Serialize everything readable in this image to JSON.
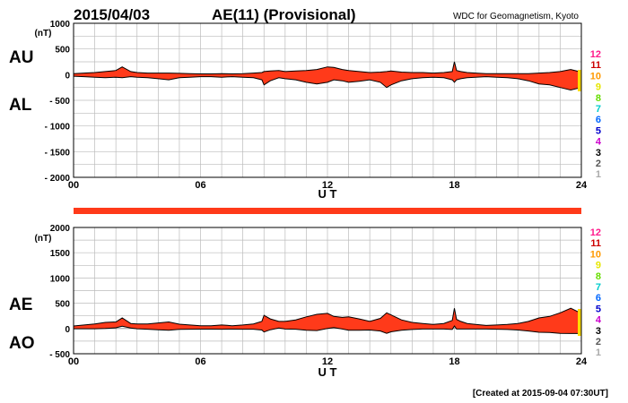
{
  "header": {
    "date": "2015/04/03",
    "title": "AE(11) (Provisional)",
    "source": "WDC for Geomagnetism, Kyoto"
  },
  "footer": {
    "created": "[Created at 2015-09-04 07:30UT]"
  },
  "station_scale": {
    "labels": [
      "12",
      "11",
      "10",
      "9",
      "8",
      "7",
      "6",
      "5",
      "4",
      "3",
      "2",
      "1"
    ],
    "colors": [
      "#ff1a8c",
      "#cc0000",
      "#ff9900",
      "#e6e600",
      "#66dd00",
      "#00cccc",
      "#0066ff",
      "#0000cc",
      "#cc00cc",
      "#000000",
      "#555555",
      "#aaaaaa"
    ]
  },
  "colors": {
    "fill": "#ff3a1a",
    "line": "#000000",
    "grid": "#bbbbbb",
    "coverage": "#ff3a1a"
  },
  "chart_data": [
    {
      "type": "area",
      "panel": "AU/AL",
      "series_labels": [
        "AU",
        "AL"
      ],
      "unit": "(nT)",
      "xlabel": "U T",
      "x_ticks": [
        "00",
        "06",
        "12",
        "18",
        "24"
      ],
      "xlim": [
        0,
        24
      ],
      "ylim": [
        -2000,
        1000
      ],
      "y_ticks": [
        "1000",
        "500",
        "0",
        "- 500",
        "- 1000",
        "- 1500",
        "- 2000"
      ],
      "y_tick_values": [
        1000,
        500,
        0,
        -500,
        -1000,
        -1500,
        -2000
      ],
      "grid": true,
      "x": [
        0,
        0.5,
        1,
        1.5,
        2,
        2.3,
        2.7,
        3,
        3.5,
        4,
        4.5,
        5,
        5.5,
        6,
        6.5,
        7,
        7.5,
        8,
        8.5,
        8.9,
        9,
        9.3,
        9.7,
        10,
        10.5,
        11,
        11.5,
        12,
        12.3,
        12.7,
        13,
        13.5,
        14,
        14.5,
        14.8,
        15,
        15.5,
        16,
        16.5,
        17,
        17.5,
        17.9,
        18,
        18.1,
        18.3,
        18.6,
        19,
        19.5,
        20,
        20.5,
        21,
        21.5,
        22,
        22.5,
        23,
        23.5,
        24
      ],
      "au": [
        20,
        30,
        40,
        60,
        80,
        150,
        60,
        40,
        30,
        30,
        30,
        25,
        20,
        15,
        15,
        20,
        15,
        20,
        30,
        40,
        60,
        70,
        80,
        60,
        70,
        80,
        100,
        150,
        140,
        100,
        80,
        60,
        40,
        50,
        60,
        70,
        50,
        40,
        40,
        30,
        40,
        60,
        250,
        80,
        60,
        40,
        30,
        20,
        20,
        20,
        20,
        20,
        30,
        40,
        60,
        100,
        50
      ],
      "al": [
        -30,
        -40,
        -50,
        -60,
        -50,
        -60,
        -40,
        -50,
        -60,
        -80,
        -100,
        -60,
        -50,
        -40,
        -40,
        -50,
        -40,
        -50,
        -60,
        -100,
        -200,
        -120,
        -60,
        -80,
        -100,
        -150,
        -180,
        -150,
        -100,
        -120,
        -150,
        -130,
        -100,
        -150,
        -250,
        -200,
        -120,
        -80,
        -60,
        -50,
        -60,
        -100,
        -150,
        -100,
        -80,
        -60,
        -50,
        -40,
        -50,
        -60,
        -80,
        -120,
        -180,
        -200,
        -250,
        -300,
        -250
      ]
    },
    {
      "type": "area",
      "panel": "AE/AO",
      "series_labels": [
        "AE",
        "AO"
      ],
      "unit": "(nT)",
      "xlabel": "U T",
      "x_ticks": [
        "00",
        "06",
        "12",
        "18",
        "24"
      ],
      "xlim": [
        0,
        24
      ],
      "ylim": [
        -500,
        2000
      ],
      "y_ticks": [
        "2000",
        "1500",
        "1000",
        "500",
        "0",
        "- 500"
      ],
      "y_tick_values": [
        2000,
        1500,
        1000,
        500,
        0,
        -500
      ],
      "grid": true,
      "x": [
        0,
        0.5,
        1,
        1.5,
        2,
        2.3,
        2.7,
        3,
        3.5,
        4,
        4.5,
        5,
        5.5,
        6,
        6.5,
        7,
        7.5,
        8,
        8.5,
        8.9,
        9,
        9.3,
        9.7,
        10,
        10.5,
        11,
        11.5,
        12,
        12.3,
        12.7,
        13,
        13.5,
        14,
        14.5,
        14.8,
        15,
        15.5,
        16,
        16.5,
        17,
        17.5,
        17.9,
        18,
        18.1,
        18.3,
        18.6,
        19,
        19.5,
        20,
        20.5,
        21,
        21.5,
        22,
        22.5,
        23,
        23.5,
        24
      ],
      "ae": [
        50,
        70,
        90,
        120,
        130,
        210,
        100,
        90,
        90,
        110,
        130,
        85,
        70,
        55,
        55,
        70,
        55,
        70,
        90,
        140,
        260,
        190,
        140,
        140,
        170,
        230,
        280,
        300,
        240,
        220,
        230,
        190,
        140,
        200,
        310,
        270,
        170,
        120,
        100,
        80,
        100,
        160,
        400,
        180,
        140,
        100,
        80,
        60,
        70,
        80,
        100,
        140,
        210,
        240,
        310,
        400,
        300
      ],
      "ao": [
        -5,
        -5,
        -5,
        0,
        15,
        45,
        10,
        -5,
        -15,
        -25,
        -35,
        -17,
        -15,
        -12,
        -12,
        -15,
        -12,
        -15,
        -15,
        -30,
        -70,
        -25,
        10,
        -10,
        -15,
        -35,
        -40,
        0,
        20,
        -10,
        -35,
        -35,
        -30,
        -50,
        -95,
        -65,
        -35,
        -20,
        -10,
        -10,
        -10,
        -20,
        50,
        -10,
        -10,
        -10,
        -10,
        -10,
        -15,
        -20,
        -30,
        -50,
        -75,
        -80,
        -95,
        -100,
        -100
      ]
    }
  ]
}
